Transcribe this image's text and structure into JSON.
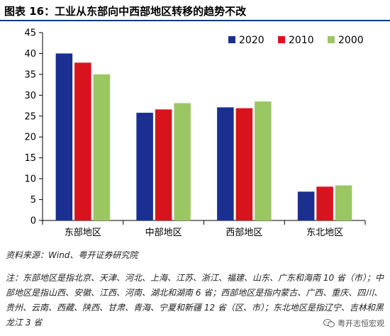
{
  "title": "图表 16：工业从东部向中西部地区转移的趋势不改",
  "source": "资料来源：Wind、粤开证券研究院",
  "note": "注：东部地区是指北京、天津、河北、上海、江苏、浙江、福建、山东、广东和海南 10 省（市）；中部地区是指山西、安徽、江西、河南、湖北和湖南 6 省；西部地区是指内蒙古、广西、重庆、四川、贵州、云南、西藏、陕西、甘肃、青海、宁夏和新疆 12 省（区、市）；东北地区是指辽宁、吉林和黑龙江 3 省",
  "watermark": "粤开志恒宏观",
  "watermark_icon": "wechat-icon",
  "chart_data": {
    "type": "bar",
    "categories": [
      "东部地区",
      "中部地区",
      "西部地区",
      "东北地区"
    ],
    "series": [
      {
        "name": "2020",
        "color": "#1a2f8f",
        "values": [
          40.0,
          25.8,
          27.1,
          6.9
        ]
      },
      {
        "name": "2010",
        "color": "#d7141e",
        "values": [
          37.8,
          26.6,
          26.9,
          8.1
        ]
      },
      {
        "name": "2000",
        "color": "#9bc762",
        "values": [
          35.0,
          28.1,
          28.5,
          8.4
        ]
      }
    ],
    "title": "",
    "xlabel": "",
    "ylabel": "",
    "ylim": [
      0,
      45
    ],
    "yticks": [
      0,
      5,
      10,
      15,
      20,
      25,
      30,
      35,
      40,
      45
    ],
    "grid": false,
    "legend": "top-right"
  }
}
